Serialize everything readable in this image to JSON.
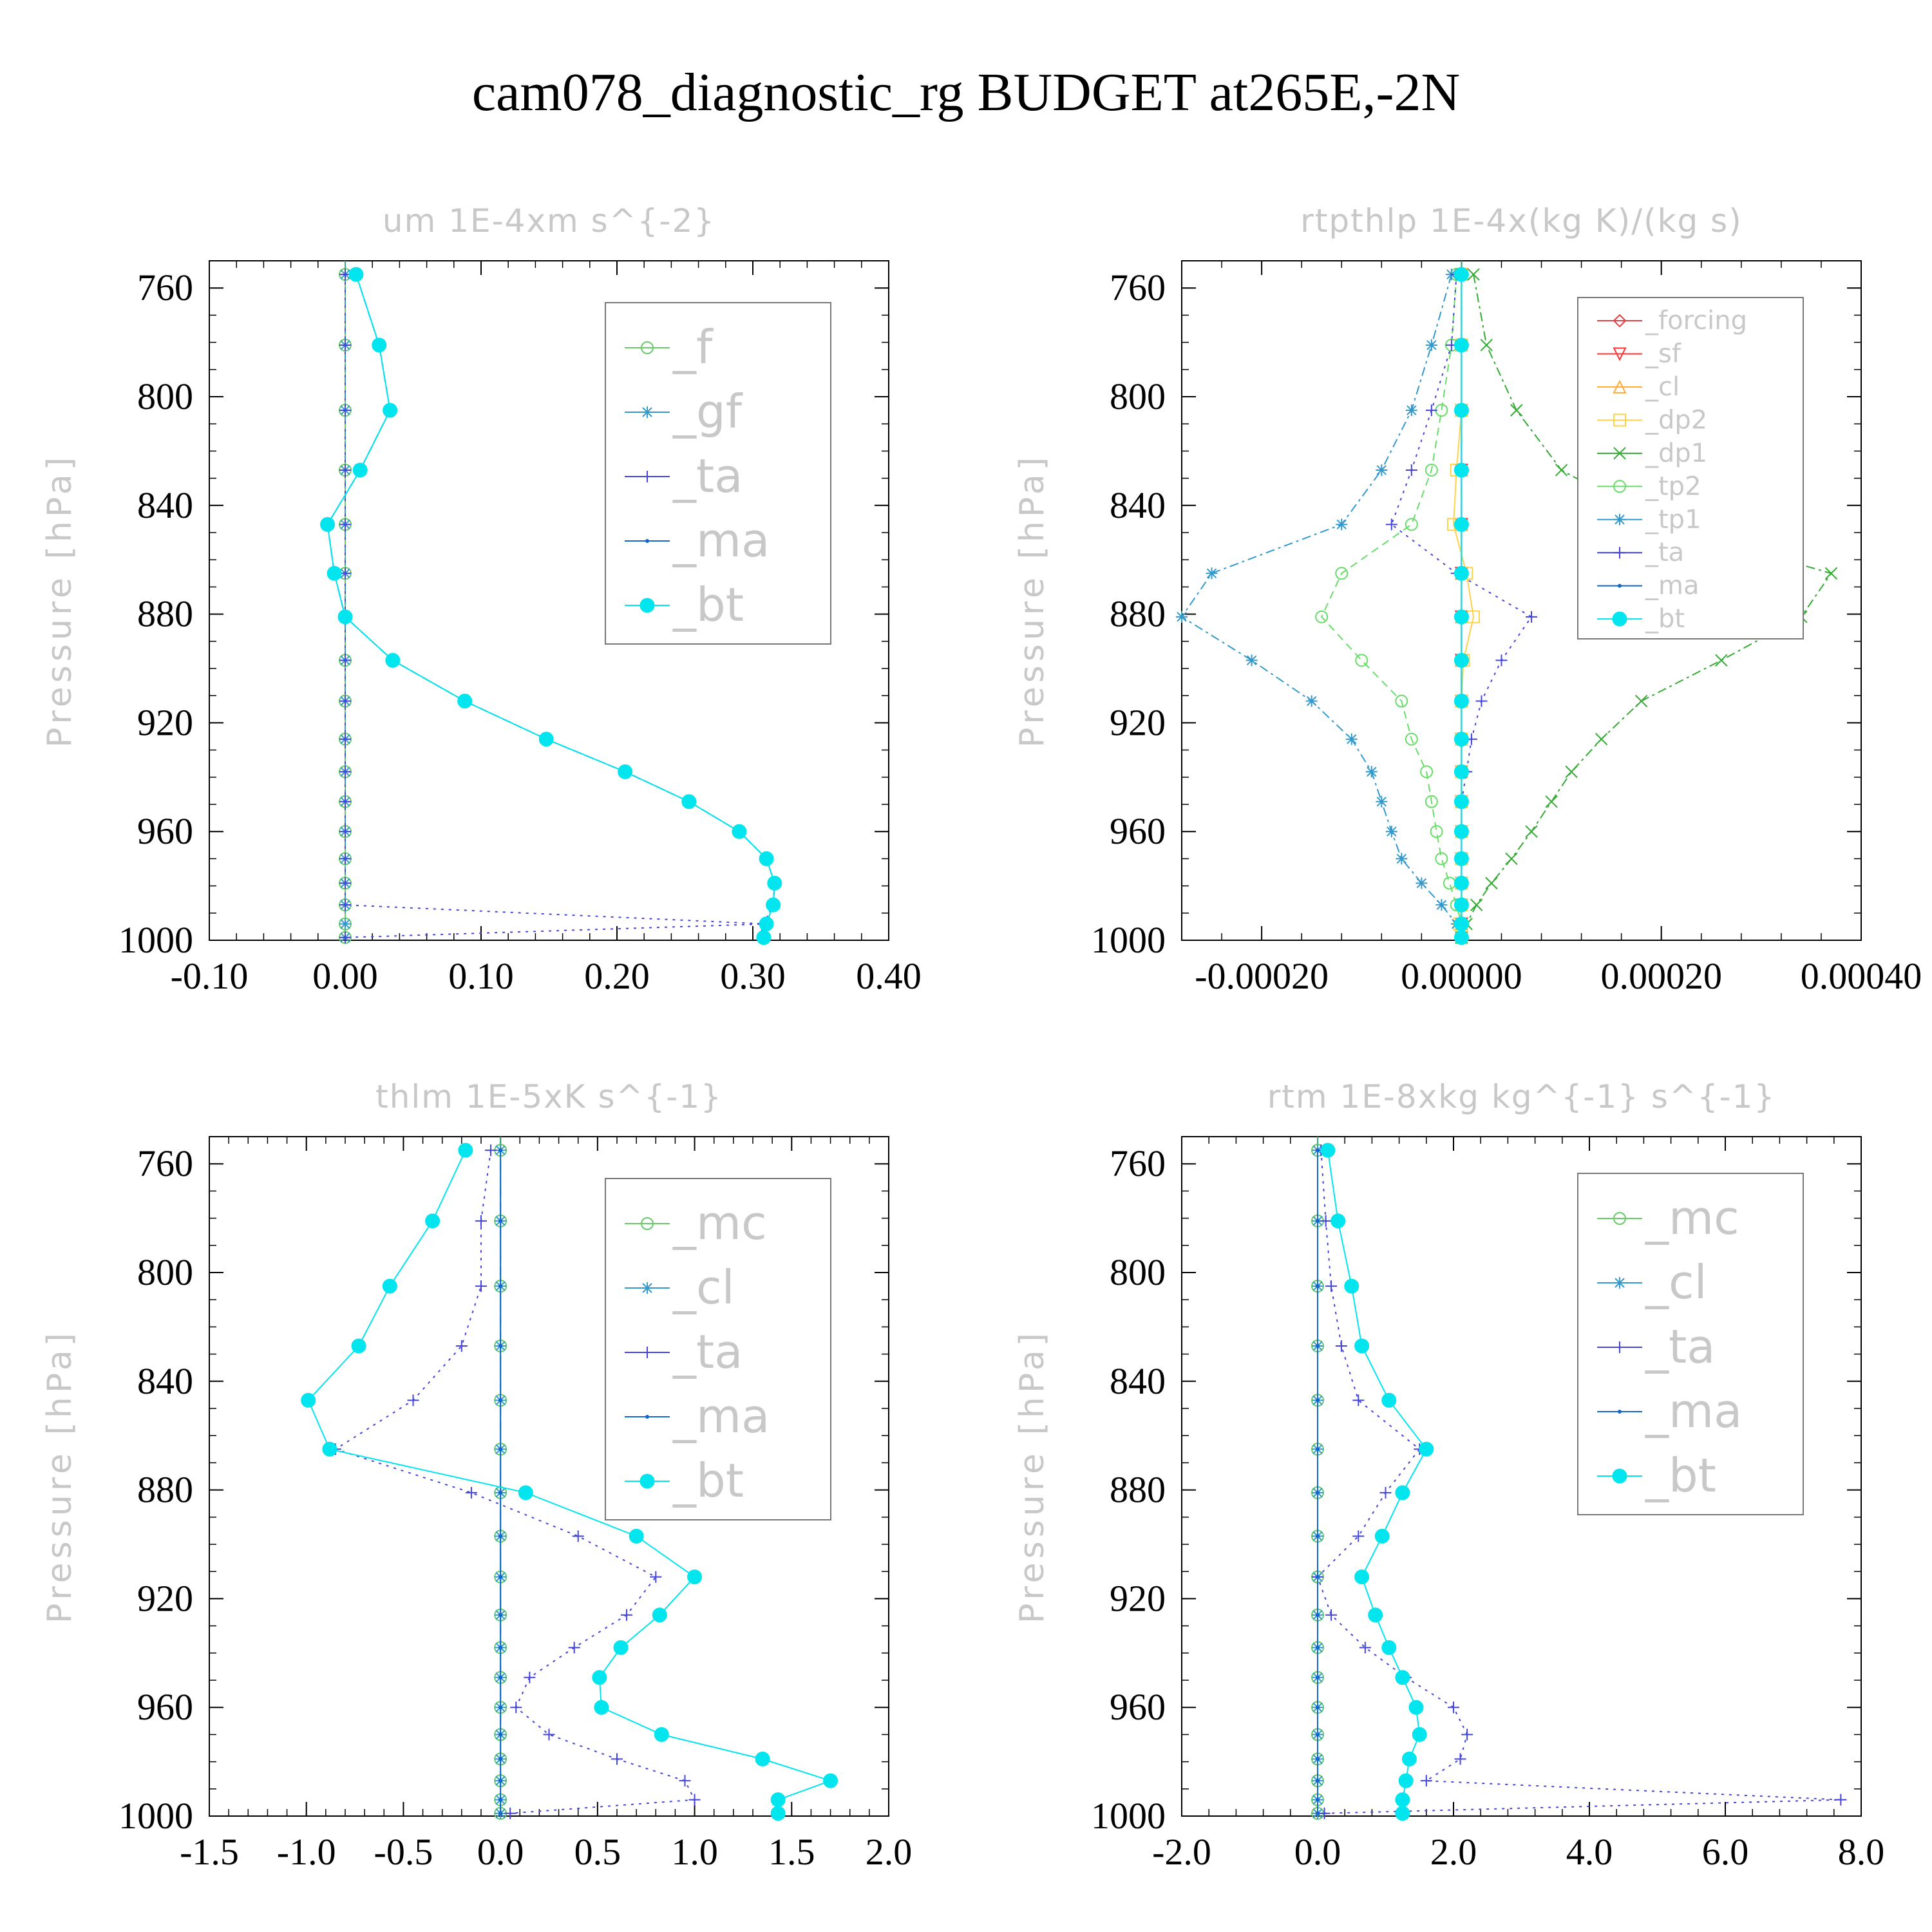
{
  "page": {
    "title": "cam078_diagnostic_rg  BUDGET at265E,-2N"
  },
  "colors": {
    "f": "#66cc66",
    "sf": "#ff3333",
    "forcing": "#e04040",
    "cl_orange": "#ffaa33",
    "dp2": "#ffd24a",
    "dp1": "#33aa33",
    "tp2": "#66dd66",
    "tp1": "#3399cc",
    "ta": "#4444dd",
    "ma": "#1166cc",
    "bt": "#00e5ee",
    "gf": "#3399cc",
    "mc": "#66cc66",
    "cl": "#3399cc"
  },
  "chart_data": [
    {
      "type": "line",
      "title": "um  1E-4xm s^{-2}",
      "ylabel": "Pressure [hPa]",
      "xlim": [
        -0.1,
        0.4
      ],
      "ylim": [
        1000,
        750
      ],
      "xticks": [
        "-0.10",
        "0.00",
        "0.10",
        "0.20",
        "0.30",
        "0.40"
      ],
      "yticks": [
        "760",
        "800",
        "840",
        "880",
        "920",
        "960",
        "1000"
      ],
      "legend_style": "big",
      "pressure": [
        755,
        781,
        805,
        827,
        847,
        865,
        881,
        897,
        912,
        926,
        938,
        949,
        960,
        970,
        979,
        987,
        994,
        999
      ],
      "series": [
        {
          "name": "_f",
          "color": "#66cc66",
          "marker": "circle",
          "dash": "none",
          "values": [
            0,
            0,
            0,
            0,
            0,
            0,
            0,
            0,
            0,
            0,
            0,
            0,
            0,
            0,
            0,
            0,
            0,
            0
          ]
        },
        {
          "name": "_gf",
          "color": "#3399cc",
          "marker": "asterisk",
          "dash": "12,8",
          "values": [
            0,
            0,
            0,
            0,
            0,
            0,
            0,
            0,
            0,
            0,
            0,
            0,
            0,
            0,
            0,
            0,
            0,
            0
          ]
        },
        {
          "name": "_ta",
          "color": "#4444dd",
          "marker": "plus",
          "dash": "4,8",
          "values": [
            0,
            0,
            0,
            0,
            0,
            0,
            0,
            0,
            0,
            0,
            0,
            0,
            0,
            0,
            0,
            0,
            0.31,
            0
          ]
        },
        {
          "name": "_ma",
          "color": "#1166cc",
          "marker": "dot",
          "dash": "14,6",
          "values": [
            0.008,
            0.025,
            0.033,
            0.011,
            -0.013,
            -0.008,
            0,
            0.035,
            0.088,
            0.148,
            0.206,
            0.253,
            0.29,
            0.31,
            0.316,
            0.315,
            0.308,
            0.305
          ]
        },
        {
          "name": "_bt",
          "color": "#00e5ee",
          "marker": "filled",
          "dash": "none",
          "values": [
            0.008,
            0.025,
            0.033,
            0.011,
            -0.013,
            -0.008,
            0,
            0.035,
            0.088,
            0.148,
            0.206,
            0.253,
            0.29,
            0.31,
            0.316,
            0.315,
            0.31,
            0.308
          ]
        }
      ]
    },
    {
      "type": "line",
      "title": "rtpthlp  1E-4x(kg K)/(kg s)",
      "ylabel": "Pressure [hPa]",
      "xlim": [
        -0.00028,
        0.0004
      ],
      "ylim": [
        1000,
        750
      ],
      "xticks": [
        "-0.00020",
        "0.00000",
        "0.00020",
        "0.00040"
      ],
      "yticks": [
        "760",
        "800",
        "840",
        "880",
        "920",
        "960",
        "1000"
      ],
      "legend_style": "small",
      "pressure": [
        755,
        781,
        805,
        827,
        847,
        865,
        881,
        897,
        912,
        926,
        938,
        949,
        960,
        970,
        979,
        987,
        994,
        999
      ],
      "series": [
        {
          "name": "_forcing",
          "color": "#e04040",
          "marker": "diamond",
          "dash": "none",
          "values": [
            0,
            0,
            0,
            0,
            0,
            0,
            0,
            0,
            0,
            0,
            0,
            0,
            0,
            0,
            0,
            0,
            0,
            0
          ]
        },
        {
          "name": "_sf",
          "color": "#ff3333",
          "marker": "tri-down",
          "dash": "none",
          "values": [
            0,
            0,
            0,
            0,
            0,
            0,
            0,
            0,
            0,
            0,
            0,
            0,
            0,
            0,
            0,
            0,
            0,
            0
          ]
        },
        {
          "name": "_cl",
          "color": "#ffaa33",
          "marker": "tri-up",
          "dash": "8,8",
          "values": [
            0,
            0,
            0,
            0,
            0,
            0,
            0,
            0,
            0,
            0,
            0,
            0,
            0,
            0,
            0,
            0,
            0,
            0
          ]
        },
        {
          "name": "_dp2",
          "color": "#ffd24a",
          "marker": "square",
          "dash": "none",
          "values": [
            0,
            0,
            0,
            -5e-06,
            -8e-06,
            5e-06,
            1.2e-05,
            2e-06,
            0,
            0,
            0,
            0,
            0,
            0,
            0,
            0,
            -2e-06,
            0
          ]
        },
        {
          "name": "_dp1",
          "color": "#33aa33",
          "marker": "cross",
          "dash": "14,6,4,6",
          "values": [
            1.2e-05,
            2.5e-05,
            5.5e-05,
            0.0001,
            0.0002,
            0.00037,
            0.00034,
            0.00026,
            0.00018,
            0.00014,
            0.00011,
            9e-05,
            7e-05,
            5e-05,
            3e-05,
            1.5e-05,
            5e-06,
            0
          ]
        },
        {
          "name": "_tp2",
          "color": "#66dd66",
          "marker": "circle",
          "dash": "12,8",
          "values": [
            -5e-06,
            -1e-05,
            -2e-05,
            -3e-05,
            -5e-05,
            -0.00012,
            -0.00014,
            -0.0001,
            -6e-05,
            -5e-05,
            -3.5e-05,
            -3e-05,
            -2.5e-05,
            -2e-05,
            -1.2e-05,
            -5e-06,
            0,
            0
          ]
        },
        {
          "name": "_tp1",
          "color": "#3399cc",
          "marker": "asterisk",
          "dash": "14,6,4,6",
          "values": [
            -1e-05,
            -3e-05,
            -5e-05,
            -8e-05,
            -0.00012,
            -0.00025,
            -0.00028,
            -0.00021,
            -0.00015,
            -0.00011,
            -9e-05,
            -8e-05,
            -7e-05,
            -6e-05,
            -4e-05,
            -2e-05,
            -5e-06,
            0
          ]
        },
        {
          "name": "_ta",
          "color": "#4444dd",
          "marker": "plus",
          "dash": "4,8",
          "values": [
            -5e-06,
            -1e-05,
            -3e-05,
            -5e-05,
            -7e-05,
            -5e-06,
            7e-05,
            4e-05,
            2e-05,
            1e-05,
            5e-06,
            0,
            0,
            0,
            0,
            0,
            0,
            0
          ]
        },
        {
          "name": "_ma",
          "color": "#1166cc",
          "marker": "dot",
          "dash": "none",
          "values": [
            0,
            0,
            0,
            0,
            0,
            0,
            0,
            0,
            0,
            0,
            0,
            0,
            0,
            0,
            0,
            0,
            0,
            0
          ]
        },
        {
          "name": "_bt",
          "color": "#00e5ee",
          "marker": "filled",
          "dash": "none",
          "values": [
            0,
            0,
            0,
            0,
            0,
            0,
            0,
            0,
            0,
            0,
            0,
            0,
            0,
            0,
            0,
            0,
            0,
            0
          ]
        }
      ]
    },
    {
      "type": "line",
      "title": "thlm  1E-5xK s^{-1}",
      "ylabel": "Pressure [hPa]",
      "xlim": [
        -1.5,
        2.0
      ],
      "ylim": [
        1000,
        750
      ],
      "xticks": [
        "-1.5",
        "-1.0",
        "-0.5",
        "0.0",
        "0.5",
        "1.0",
        "1.5",
        "2.0"
      ],
      "yticks": [
        "760",
        "800",
        "840",
        "880",
        "920",
        "960",
        "1000"
      ],
      "legend_style": "big",
      "pressure": [
        755,
        781,
        805,
        827,
        847,
        865,
        881,
        897,
        912,
        926,
        938,
        949,
        960,
        970,
        979,
        987,
        994,
        999
      ],
      "series": [
        {
          "name": "_mc",
          "color": "#66cc66",
          "marker": "circle",
          "dash": "none",
          "values": [
            0,
            0,
            0,
            0,
            0,
            0,
            0,
            0,
            0,
            0,
            0,
            0,
            0,
            0,
            0,
            0,
            0,
            0
          ]
        },
        {
          "name": "_cl",
          "color": "#3399cc",
          "marker": "asterisk",
          "dash": "12,8",
          "values": [
            0,
            0,
            0,
            0,
            0,
            0,
            0,
            0,
            0,
            0,
            0,
            0,
            0,
            0,
            0,
            0,
            0,
            0
          ]
        },
        {
          "name": "_ta",
          "color": "#4444dd",
          "marker": "plus",
          "dash": "4,8",
          "values": [
            -0.05,
            -0.1,
            -0.1,
            -0.2,
            -0.45,
            -0.85,
            -0.15,
            0.4,
            0.8,
            0.65,
            0.38,
            0.15,
            0.08,
            0.25,
            0.6,
            0.95,
            1.0,
            0.05
          ]
        },
        {
          "name": "_ma",
          "color": "#1166cc",
          "marker": "dot",
          "dash": "none",
          "values": [
            0,
            0,
            0,
            0,
            0,
            0,
            0,
            0,
            0,
            0,
            0,
            0,
            0,
            0,
            0,
            0,
            0,
            0
          ]
        },
        {
          "name": "_bt",
          "color": "#00e5ee",
          "marker": "filled",
          "dash": "none",
          "values": [
            -0.18,
            -0.35,
            -0.57,
            -0.73,
            -0.99,
            -0.88,
            0.13,
            0.7,
            1.0,
            0.82,
            0.62,
            0.51,
            0.52,
            0.83,
            1.35,
            1.7,
            1.43,
            1.43
          ]
        }
      ]
    },
    {
      "type": "line",
      "title": "rtm  1E-8xkg kg^{-1} s^{-1}",
      "ylabel": "Pressure [hPa]",
      "xlim": [
        -2.0,
        8.0
      ],
      "ylim": [
        1000,
        750
      ],
      "xticks": [
        "-2.0",
        "0.0",
        "2.0",
        "4.0",
        "6.0",
        "8.0"
      ],
      "yticks": [
        "760",
        "800",
        "840",
        "880",
        "920",
        "960",
        "1000"
      ],
      "legend_style": "big",
      "pressure": [
        755,
        781,
        805,
        827,
        847,
        865,
        881,
        897,
        912,
        926,
        938,
        949,
        960,
        970,
        979,
        987,
        994,
        999
      ],
      "series": [
        {
          "name": "_mc",
          "color": "#66cc66",
          "marker": "circle",
          "dash": "none",
          "values": [
            0,
            0,
            0,
            0,
            0,
            0,
            0,
            0,
            0,
            0,
            0,
            0,
            0,
            0,
            0,
            0,
            0,
            0
          ]
        },
        {
          "name": "_cl",
          "color": "#3399cc",
          "marker": "asterisk",
          "dash": "12,8",
          "values": [
            0,
            0,
            0,
            0,
            0,
            0,
            0,
            0,
            0,
            0,
            0,
            0,
            0,
            0,
            0,
            0,
            0,
            0
          ]
        },
        {
          "name": "_ta",
          "color": "#4444dd",
          "marker": "plus",
          "dash": "4,8",
          "values": [
            0.05,
            0.12,
            0.2,
            0.35,
            0.6,
            1.5,
            1.0,
            0.6,
            0,
            0.2,
            0.7,
            1.3,
            2.0,
            2.2,
            2.1,
            1.6,
            7.7,
            0.1
          ]
        },
        {
          "name": "_ma",
          "color": "#1166cc",
          "marker": "dot",
          "dash": "none",
          "values": [
            0,
            0,
            0,
            0,
            0,
            0,
            0,
            0,
            0,
            0,
            0,
            0,
            0,
            0,
            0,
            0,
            0,
            0
          ]
        },
        {
          "name": "_bt",
          "color": "#00e5ee",
          "marker": "filled",
          "dash": "none",
          "values": [
            0.15,
            0.3,
            0.5,
            0.65,
            1.05,
            1.6,
            1.25,
            0.95,
            0.65,
            0.85,
            1.05,
            1.25,
            1.45,
            1.5,
            1.35,
            1.3,
            1.25,
            1.25
          ]
        }
      ]
    }
  ]
}
